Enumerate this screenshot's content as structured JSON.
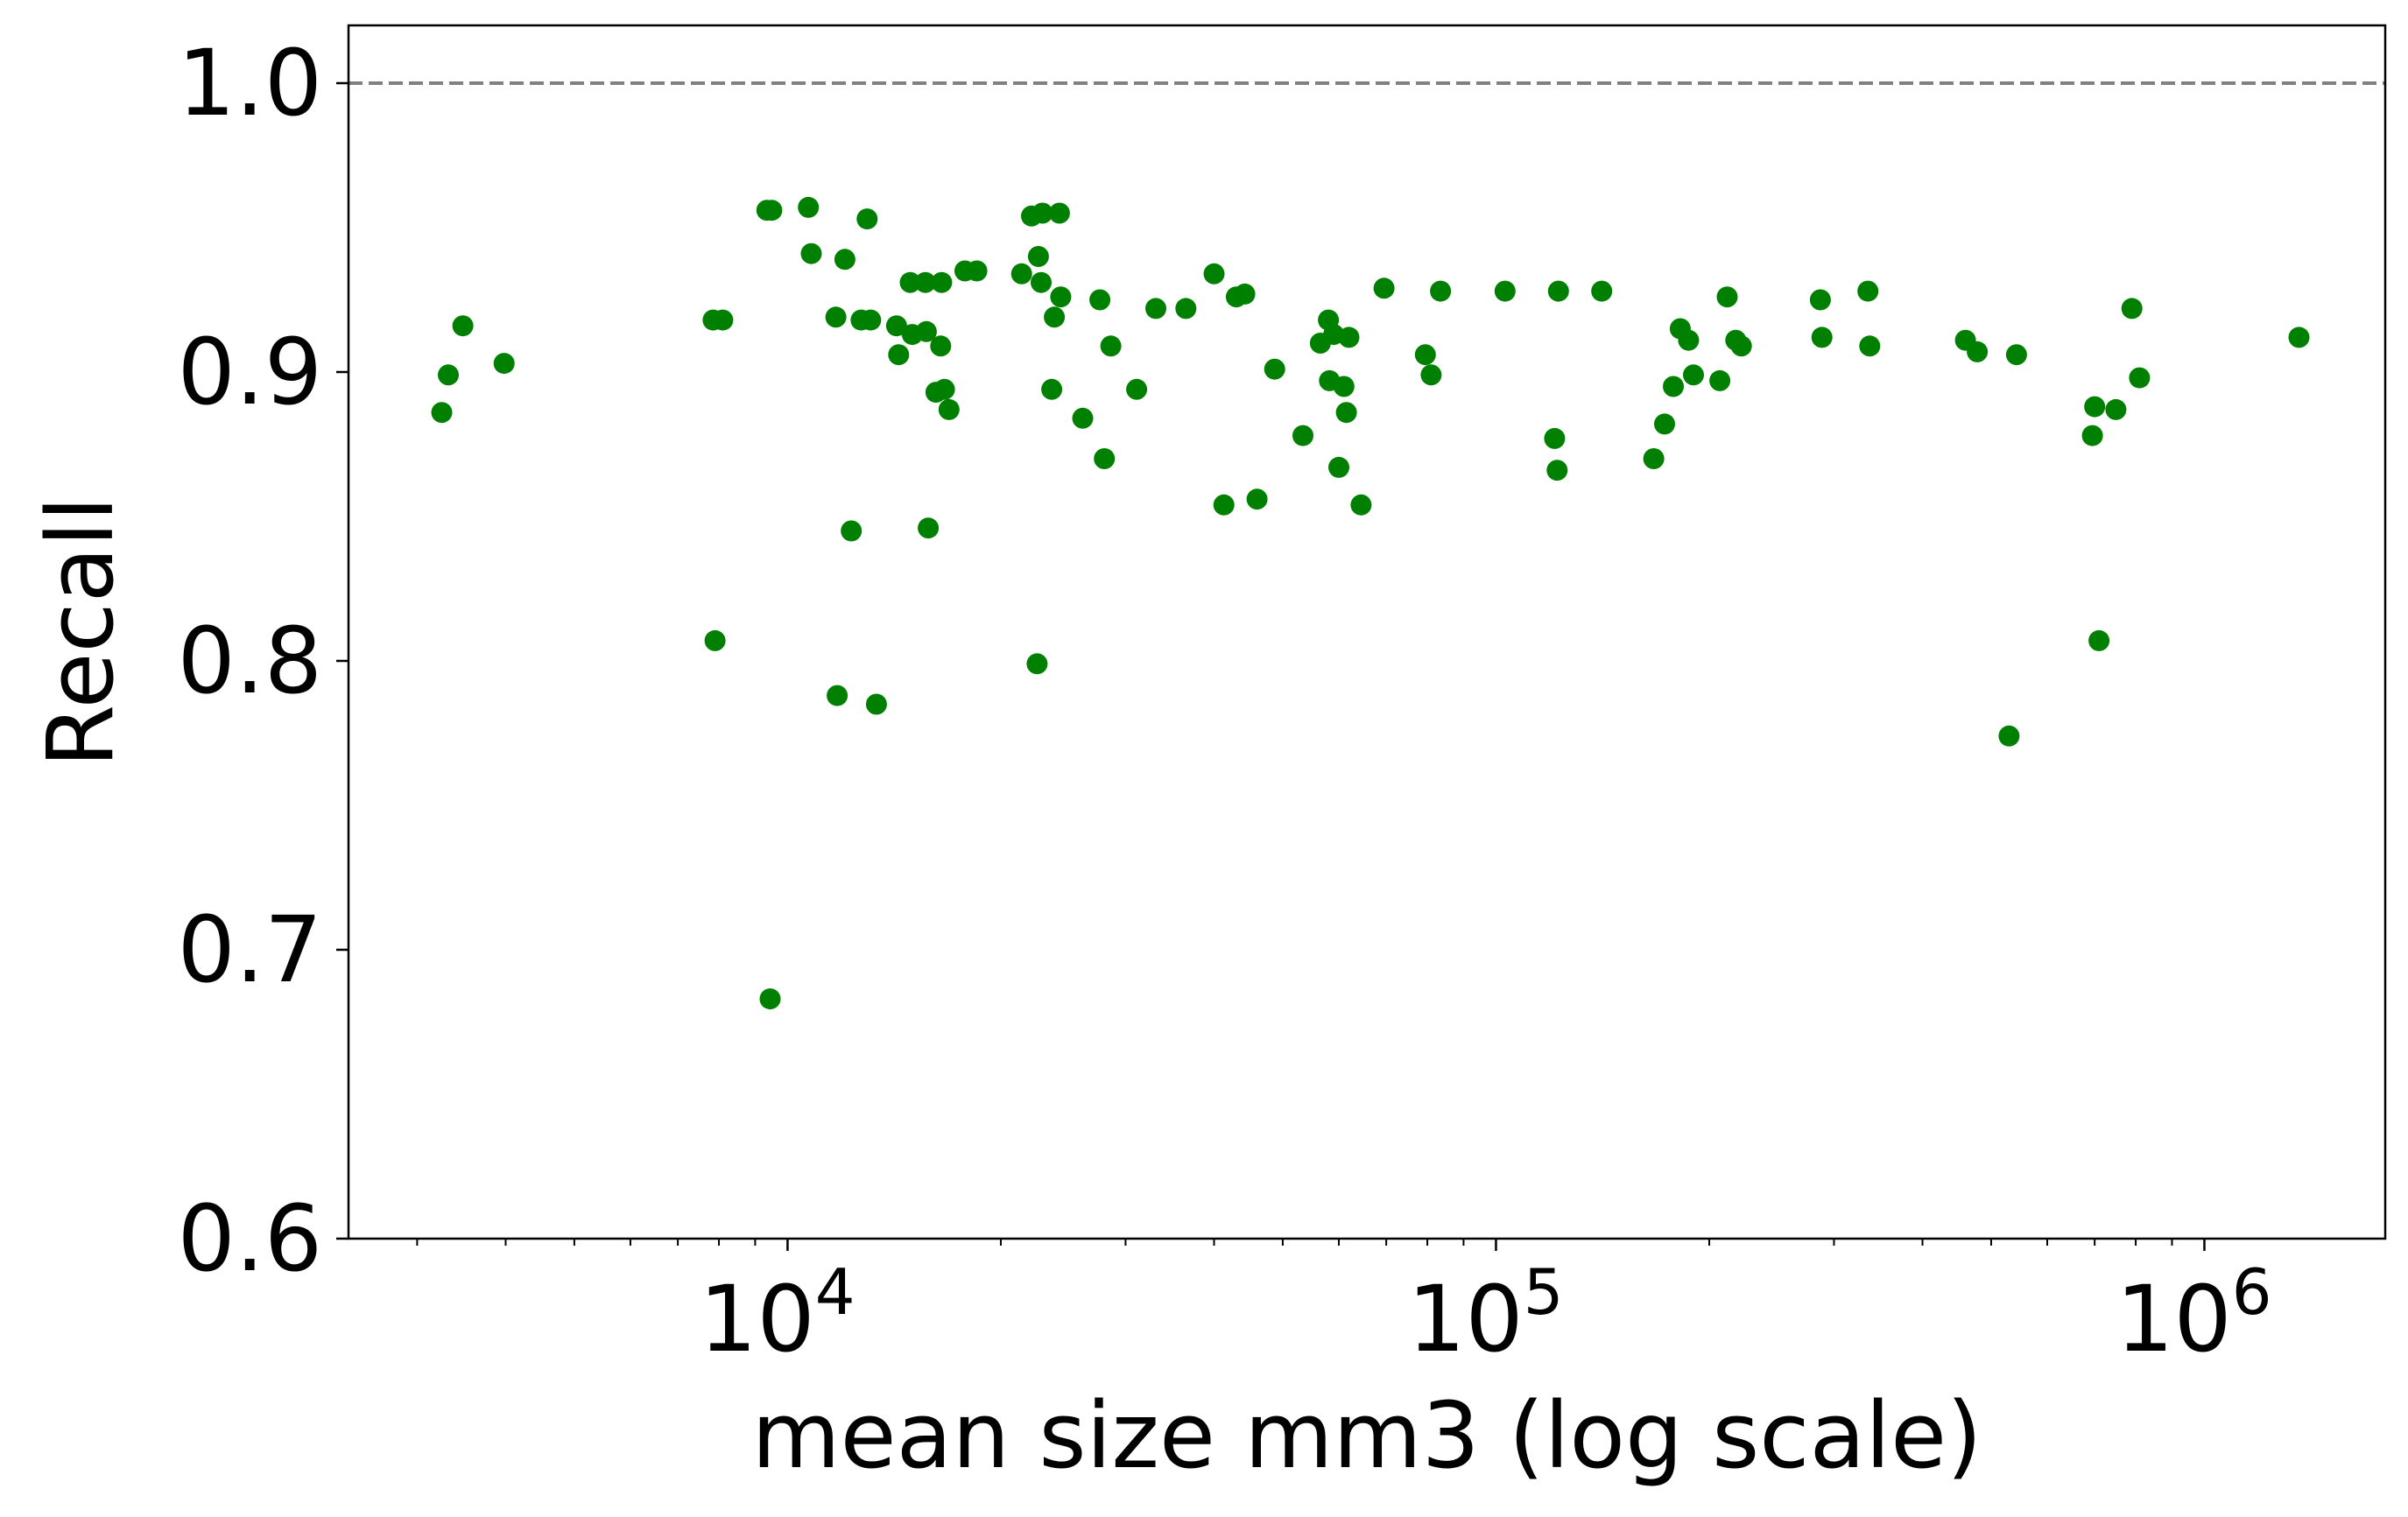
{
  "chart_data": {
    "type": "scatter",
    "title": "",
    "xlabel": "mean size mm3 (log scale)",
    "ylabel": "Recall",
    "xscale": "log",
    "xlim": [
      2400,
      1800000
    ],
    "ylim": [
      0.6,
      1.02
    ],
    "grid": false,
    "legend": "none",
    "point_color": "#008000",
    "reference_line": {
      "y": 1.0,
      "style": "dashed",
      "color": "#808080"
    },
    "y_ticks": [
      "0.6",
      "0.7",
      "0.8",
      "0.9",
      "1.0"
    ],
    "y_tick_values": [
      0.6,
      0.7,
      0.8,
      0.9,
      1.0
    ],
    "x_ticks": [
      {
        "value": 10000,
        "base": "10",
        "exp": "4"
      },
      {
        "value": 100000,
        "base": "10",
        "exp": "5"
      },
      {
        "value": 1000000,
        "base": "10",
        "exp": "6"
      }
    ],
    "points": [
      [
        3250,
        0.886
      ],
      [
        3320,
        0.899
      ],
      [
        3480,
        0.916
      ],
      [
        3980,
        0.903
      ],
      [
        7850,
        0.918
      ],
      [
        7900,
        0.807
      ],
      [
        8100,
        0.918
      ],
      [
        9350,
        0.956
      ],
      [
        9450,
        0.683
      ],
      [
        9500,
        0.956
      ],
      [
        10700,
        0.957
      ],
      [
        10800,
        0.941
      ],
      [
        11700,
        0.919
      ],
      [
        11750,
        0.788
      ],
      [
        12050,
        0.939
      ],
      [
        12300,
        0.845
      ],
      [
        12700,
        0.918
      ],
      [
        12950,
        0.953
      ],
      [
        13100,
        0.918
      ],
      [
        13350,
        0.785
      ],
      [
        14250,
        0.916
      ],
      [
        14350,
        0.906
      ],
      [
        14900,
        0.931
      ],
      [
        15000,
        0.913
      ],
      [
        15650,
        0.931
      ],
      [
        15700,
        0.914
      ],
      [
        15800,
        0.846
      ],
      [
        16200,
        0.893
      ],
      [
        16450,
        0.909
      ],
      [
        16500,
        0.931
      ],
      [
        16650,
        0.894
      ],
      [
        16900,
        0.887
      ],
      [
        17800,
        0.935
      ],
      [
        18500,
        0.935
      ],
      [
        21400,
        0.934
      ],
      [
        22100,
        0.954
      ],
      [
        22500,
        0.799
      ],
      [
        22600,
        0.94
      ],
      [
        22800,
        0.931
      ],
      [
        22900,
        0.955
      ],
      [
        23600,
        0.894
      ],
      [
        23800,
        0.919
      ],
      [
        24200,
        0.955
      ],
      [
        24300,
        0.926
      ],
      [
        26100,
        0.884
      ],
      [
        27600,
        0.925
      ],
      [
        28000,
        0.87
      ],
      [
        28600,
        0.909
      ],
      [
        31100,
        0.894
      ],
      [
        33100,
        0.922
      ],
      [
        36500,
        0.922
      ],
      [
        40000,
        0.934
      ],
      [
        41300,
        0.854
      ],
      [
        43000,
        0.926
      ],
      [
        44200,
        0.927
      ],
      [
        46000,
        0.856
      ],
      [
        48700,
        0.901
      ],
      [
        53400,
        0.878
      ],
      [
        56500,
        0.91
      ],
      [
        58000,
        0.918
      ],
      [
        58200,
        0.897
      ],
      [
        59000,
        0.913
      ],
      [
        60000,
        0.867
      ],
      [
        61000,
        0.895
      ],
      [
        61500,
        0.886
      ],
      [
        62000,
        0.912
      ],
      [
        64500,
        0.854
      ],
      [
        69500,
        0.929
      ],
      [
        79500,
        0.906
      ],
      [
        81000,
        0.899
      ],
      [
        83500,
        0.928
      ],
      [
        103000,
        0.928
      ],
      [
        121000,
        0.877
      ],
      [
        122000,
        0.866
      ],
      [
        122500,
        0.928
      ],
      [
        141000,
        0.928
      ],
      [
        167000,
        0.87
      ],
      [
        173000,
        0.882
      ],
      [
        178000,
        0.895
      ],
      [
        182000,
        0.915
      ],
      [
        187000,
        0.911
      ],
      [
        190000,
        0.899
      ],
      [
        207000,
        0.897
      ],
      [
        212000,
        0.926
      ],
      [
        218000,
        0.911
      ],
      [
        222000,
        0.909
      ],
      [
        287000,
        0.925
      ],
      [
        288500,
        0.912
      ],
      [
        335000,
        0.928
      ],
      [
        337000,
        0.909
      ],
      [
        460000,
        0.911
      ],
      [
        478000,
        0.907
      ],
      [
        530000,
        0.774
      ],
      [
        543000,
        0.906
      ],
      [
        695000,
        0.878
      ],
      [
        700000,
        0.888
      ],
      [
        710000,
        0.807
      ],
      [
        750000,
        0.887
      ],
      [
        790000,
        0.922
      ],
      [
        810000,
        0.898
      ],
      [
        1360000,
        0.912
      ]
    ]
  }
}
